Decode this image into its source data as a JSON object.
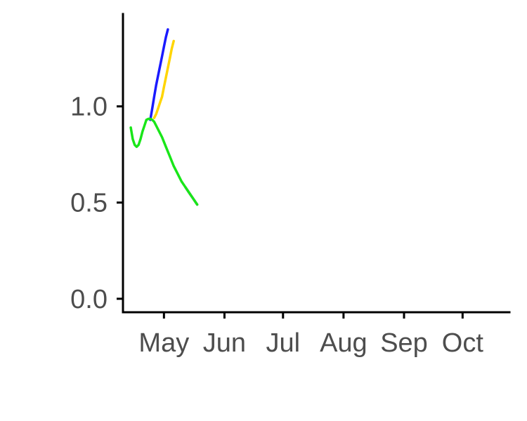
{
  "chart_data": {
    "type": "line",
    "title": "",
    "xlabel": "",
    "ylabel": "",
    "x_ticks": [
      "2023-05-01",
      "2023-06-01",
      "2023-07-01",
      "2023-08-01",
      "2023-09-01",
      "2023-10-01"
    ],
    "x_tick_labels": [
      "May",
      "Jun",
      "Jul",
      "Aug",
      "Sep",
      "Oct"
    ],
    "y_ticks": [
      0.0,
      0.5,
      1.0
    ],
    "y_tick_labels": [
      "0.0",
      "0.5",
      "1.0"
    ],
    "xlim": [
      "2023-04-10",
      "2023-10-25"
    ],
    "ylim": [
      -0.07,
      1.48
    ],
    "grid": false,
    "legend": "none",
    "series": [
      {
        "color": "#1a1aff",
        "points": [
          [
            "2023-04-24",
            0.93
          ],
          [
            "2023-04-25",
            0.99
          ],
          [
            "2023-04-26",
            1.05
          ],
          [
            "2023-04-27",
            1.11
          ],
          [
            "2023-04-28",
            1.16
          ],
          [
            "2023-04-29",
            1.21
          ],
          [
            "2023-04-30",
            1.26
          ],
          [
            "2023-05-01",
            1.31
          ],
          [
            "2023-05-02",
            1.36
          ],
          [
            "2023-05-03",
            1.4
          ]
        ]
      },
      {
        "color": "#ffd500",
        "points": [
          [
            "2023-04-26",
            0.94
          ],
          [
            "2023-04-27",
            0.96
          ],
          [
            "2023-04-28",
            0.99
          ],
          [
            "2023-04-29",
            1.02
          ],
          [
            "2023-04-30",
            1.05
          ],
          [
            "2023-05-01",
            1.1
          ],
          [
            "2023-05-02",
            1.15
          ],
          [
            "2023-05-03",
            1.2
          ],
          [
            "2023-05-04",
            1.25
          ],
          [
            "2023-05-05",
            1.3
          ],
          [
            "2023-05-06",
            1.34
          ]
        ]
      },
      {
        "color": "#7a2d9c",
        "points": [
          [
            "2023-05-12",
            0.58
          ],
          [
            "2023-05-14",
            0.55
          ],
          [
            "2023-05-16",
            0.52
          ],
          [
            "2023-05-18",
            0.49
          ]
        ]
      },
      {
        "color": "#19e619",
        "points": [
          [
            "2023-04-14",
            0.89
          ],
          [
            "2023-04-15",
            0.83
          ],
          [
            "2023-04-16",
            0.8
          ],
          [
            "2023-04-17",
            0.79
          ],
          [
            "2023-04-18",
            0.8
          ],
          [
            "2023-04-19",
            0.83
          ],
          [
            "2023-04-20",
            0.87
          ],
          [
            "2023-04-21",
            0.9
          ],
          [
            "2023-04-22",
            0.93
          ],
          [
            "2023-04-23",
            0.935
          ],
          [
            "2023-04-24",
            0.935
          ],
          [
            "2023-04-25",
            0.93
          ],
          [
            "2023-04-26",
            0.92
          ],
          [
            "2023-04-27",
            0.9
          ],
          [
            "2023-04-28",
            0.88
          ],
          [
            "2023-04-30",
            0.84
          ],
          [
            "2023-05-02",
            0.79
          ],
          [
            "2023-05-04",
            0.74
          ],
          [
            "2023-05-06",
            0.69
          ],
          [
            "2023-05-08",
            0.65
          ],
          [
            "2023-05-10",
            0.61
          ],
          [
            "2023-05-12",
            0.58
          ],
          [
            "2023-05-14",
            0.55
          ],
          [
            "2023-05-16",
            0.52
          ],
          [
            "2023-05-18",
            0.49
          ]
        ]
      }
    ]
  }
}
